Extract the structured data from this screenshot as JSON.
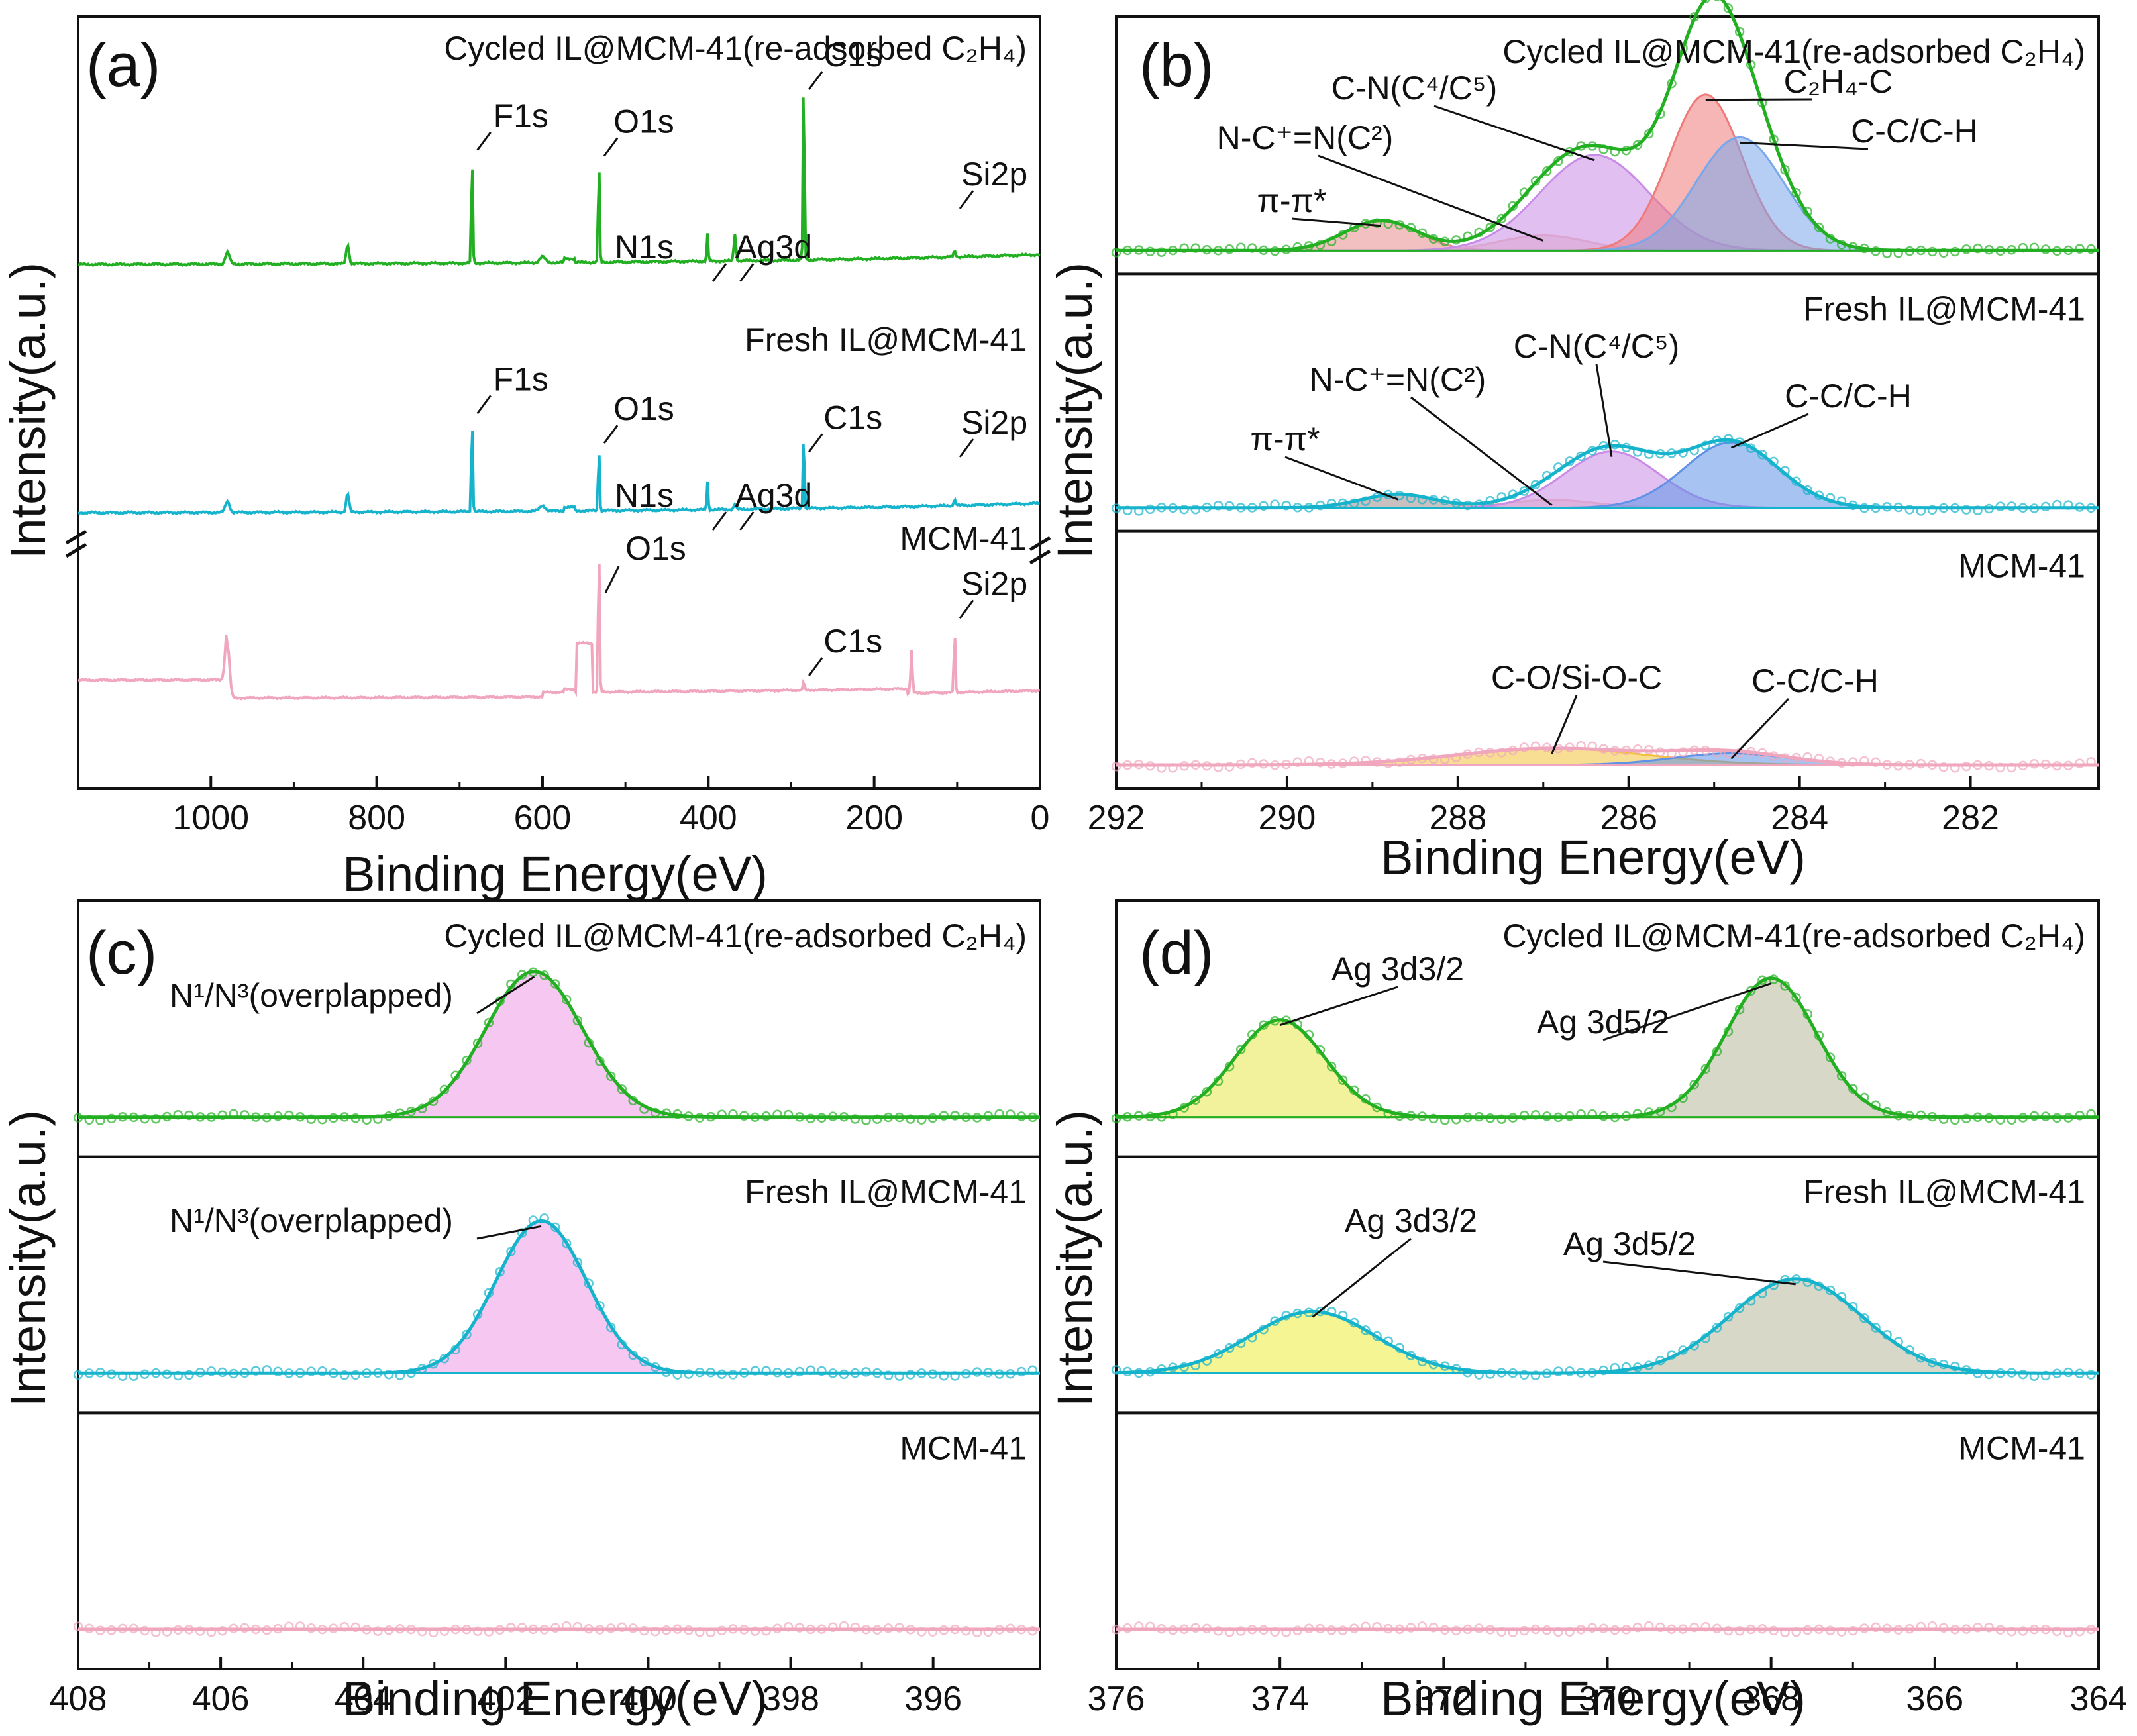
{
  "figure": {
    "panels": [
      {
        "id": "a",
        "letter": "(a)",
        "xlabel": "Binding Energy(eV)",
        "ylabel": "Intensity(a.u.)",
        "xlim": [
          1160,
          0
        ],
        "xticks": [
          1000,
          800,
          600,
          400,
          200,
          0
        ],
        "tracks": [
          {
            "name": "Cycled IL@MCM-41(re-adsorbed C2H4)",
            "sample_label": "Cycled IL@MCM-41(re-adsorbed C₂H₄)",
            "color": "#22b022",
            "peaks": [
              {
                "label": "F1s",
                "x": 685,
                "h": 0.58,
                "w": 2
              },
              {
                "label": "O1s",
                "x": 532,
                "h": 0.55,
                "w": 2
              },
              {
                "label": "N1s",
                "x": 401,
                "h": 0.14,
                "w": 2
              },
              {
                "label": "Ag3d",
                "x": 368,
                "h": 0.14,
                "w": 3
              },
              {
                "label": "C1s",
                "x": 285,
                "h": 1.0,
                "w": 2
              },
              {
                "label": "Si2p",
                "x": 103,
                "h": 0.03,
                "w": 3
              }
            ]
          },
          {
            "name": "Fresh IL@MCM-41",
            "sample_label": "Fresh IL@MCM-41",
            "color": "#16b4cc",
            "peaks": [
              {
                "label": "F1s",
                "x": 685,
                "h": 0.52,
                "w": 2
              },
              {
                "label": "O1s",
                "x": 532,
                "h": 0.36,
                "w": 2
              },
              {
                "label": "N1s",
                "x": 401,
                "h": 0.15,
                "w": 2
              },
              {
                "label": "Ag3d",
                "x": 368,
                "h": 0.03,
                "w": 3
              },
              {
                "label": "C1s",
                "x": 285,
                "h": 0.42,
                "w": 2
              },
              {
                "label": "Si2p",
                "x": 103,
                "h": 0.03,
                "w": 3
              }
            ]
          },
          {
            "name": "MCM-41",
            "sample_label": "MCM-41",
            "color": "#f0a6bd",
            "peaks": [
              {
                "label": "O1s",
                "x": 532,
                "h": 1.0,
                "w": 2
              },
              {
                "label": "C1s",
                "x": 285,
                "h": 0.06,
                "w": 2
              },
              {
                "label": "Si2p",
                "x": 103,
                "h": 0.42,
                "w": 2
              }
            ]
          }
        ]
      },
      {
        "id": "b",
        "letter": "(b)",
        "xlabel": "Binding Energy(eV)",
        "ylabel": "Intensity(a.u.)",
        "xlim": [
          292,
          280.5
        ],
        "xticks": [
          292,
          290,
          288,
          286,
          284,
          282
        ],
        "subpanels": [
          {
            "name": "Cycled IL@MCM-41(re-adsorbed C2H4)",
            "sample_label": "Cycled IL@MCM-41(re-adsorbed C₂H₄)",
            "color": "#22b022",
            "components": [
              {
                "label": "π-π*",
                "center": 288.9,
                "height": 0.12,
                "fwhm": 1.0,
                "color": "#e88c8c"
              },
              {
                "label": "N-C⁺=N(C²)",
                "center": 287.0,
                "height": 0.06,
                "fwhm": 1.2,
                "color": "#f3c2b8"
              },
              {
                "label": "C-N(C⁴/C⁵)",
                "center": 286.4,
                "height": 0.38,
                "fwhm": 1.5,
                "color": "#c98ce6"
              },
              {
                "label": "C₂H₄-C",
                "center": 285.1,
                "height": 0.62,
                "fwhm": 1.0,
                "color": "#f07a7a"
              },
              {
                "label": "C-C/C-H",
                "center": 284.7,
                "height": 0.45,
                "fwhm": 1.2,
                "color": "#7aa6ea"
              }
            ]
          },
          {
            "name": "Fresh IL@MCM-41",
            "sample_label": "Fresh IL@MCM-41",
            "color": "#16b4cc",
            "components": [
              {
                "label": "π-π*",
                "center": 288.7,
                "height": 0.12,
                "fwhm": 1.0,
                "color": "#a08c8c"
              },
              {
                "label": "N-C⁺=N(C²)",
                "center": 286.9,
                "height": 0.07,
                "fwhm": 1.2,
                "color": "#f3c2b8"
              },
              {
                "label": "C-N(C⁴/C⁵)",
                "center": 286.2,
                "height": 0.5,
                "fwhm": 1.3,
                "color": "#c98ce6"
              },
              {
                "label": "C-C/C-H",
                "center": 284.8,
                "height": 0.58,
                "fwhm": 1.3,
                "color": "#5f92e6"
              }
            ]
          },
          {
            "name": "MCM-41",
            "sample_label": "MCM-41",
            "color": "#f0a6bd",
            "components": [
              {
                "label": "C-O/Si-O-C",
                "center": 286.9,
                "height": 0.1,
                "fwhm": 2.6,
                "color": "#f2c23a"
              },
              {
                "label": "C-C/C-H",
                "center": 284.8,
                "height": 0.07,
                "fwhm": 1.6,
                "color": "#5f92e6"
              }
            ]
          }
        ]
      },
      {
        "id": "c",
        "letter": "(c)",
        "xlabel": "Binding Energy(eV)",
        "ylabel": "Intensity(a.u.)",
        "xlim": [
          408,
          394.5
        ],
        "xticks": [
          408,
          406,
          404,
          402,
          400,
          398,
          396
        ],
        "subpanels": [
          {
            "name": "Cycled IL@MCM-41(re-adsorbed C2H4)",
            "sample_label": "Cycled IL@MCM-41(re-adsorbed C₂H₄)",
            "color": "#22b022",
            "components": [
              {
                "label": "N¹/N³(overplapped)",
                "center": 401.6,
                "height": 1.0,
                "fwhm": 1.6,
                "color": "#ee9ae6"
              }
            ]
          },
          {
            "name": "Fresh IL@MCM-41",
            "sample_label": "Fresh IL@MCM-41",
            "color": "#16b4cc",
            "components": [
              {
                "label": "N¹/N³(overplapped)",
                "center": 401.5,
                "height": 1.0,
                "fwhm": 1.5,
                "color": "#ee9ae6"
              }
            ]
          },
          {
            "name": "MCM-41",
            "sample_label": "MCM-41",
            "color": "#f0a6bd",
            "components": []
          }
        ]
      },
      {
        "id": "d",
        "letter": "(d)",
        "xlabel": "Binding Energy(eV)",
        "ylabel": "Intensity(a.u.)",
        "xlim": [
          376,
          364
        ],
        "xticks": [
          376,
          374,
          372,
          370,
          368,
          366,
          364
        ],
        "subpanels": [
          {
            "name": "Cycled IL@MCM-41(re-adsorbed C2H4)",
            "sample_label": "Cycled IL@MCM-41(re-adsorbed C₂H₄)",
            "color": "#22b022",
            "components": [
              {
                "label": "Ag 3d3/2",
                "center": 374.0,
                "height": 0.7,
                "fwhm": 1.3,
                "color": "#e8e84a"
              },
              {
                "label": "Ag 3d5/2",
                "center": 368.0,
                "height": 1.0,
                "fwhm": 1.3,
                "color": "#b8b89a"
              }
            ]
          },
          {
            "name": "Fresh IL@MCM-41",
            "sample_label": "Fresh IL@MCM-41",
            "color": "#16b4cc",
            "components": [
              {
                "label": "Ag 3d3/2",
                "center": 373.6,
                "height": 0.62,
                "fwhm": 1.8,
                "color": "#ecec3a"
              },
              {
                "label": "Ag 3d5/2",
                "center": 367.7,
                "height": 0.95,
                "fwhm": 1.9,
                "color": "#b8b89a"
              }
            ]
          },
          {
            "name": "MCM-41",
            "sample_label": "MCM-41",
            "color": "#f0a6bd",
            "components": []
          }
        ]
      }
    ]
  },
  "chart_data": [
    {
      "type": "line",
      "panel": "a",
      "title": "(a)",
      "xlabel": "Binding Energy(eV)",
      "ylabel": "Intensity(a.u.)",
      "xlim": [
        1160,
        0
      ],
      "series": [
        {
          "name": "Cycled IL@MCM-41(re-adsorbed C2H4)",
          "peaks": {
            "F1s": 685,
            "O1s": 532,
            "N1s": 401,
            "Ag3d": 368,
            "C1s": 285,
            "Si2p": 103
          }
        },
        {
          "name": "Fresh IL@MCM-41",
          "peaks": {
            "F1s": 685,
            "O1s": 532,
            "N1s": 401,
            "Ag3d": 368,
            "C1s": 285,
            "Si2p": 103
          }
        },
        {
          "name": "MCM-41",
          "peaks": {
            "O1s": 532,
            "C1s": 285,
            "Si2p": 103
          }
        }
      ]
    },
    {
      "type": "line",
      "panel": "b",
      "title": "(b)",
      "xlabel": "Binding Energy(eV)",
      "ylabel": "Intensity(a.u.)",
      "xlim": [
        292,
        280.5
      ],
      "series": [
        {
          "name": "Cycled IL@MCM-41(re-adsorbed C2H4)",
          "components": {
            "π-π*": 288.9,
            "N-C+=N(C2)": 287.0,
            "C-N(C4/C5)": 286.4,
            "C2H4-C": 285.1,
            "C-C/C-H": 284.7
          }
        },
        {
          "name": "Fresh IL@MCM-41",
          "components": {
            "π-π*": 288.7,
            "N-C+=N(C2)": 286.9,
            "C-N(C4/C5)": 286.2,
            "C-C/C-H": 284.8
          }
        },
        {
          "name": "MCM-41",
          "components": {
            "C-O/Si-O-C": 286.9,
            "C-C/C-H": 284.8
          }
        }
      ]
    },
    {
      "type": "line",
      "panel": "c",
      "title": "(c)",
      "xlabel": "Binding Energy(eV)",
      "ylabel": "Intensity(a.u.)",
      "xlim": [
        408,
        394.5
      ],
      "series": [
        {
          "name": "Cycled IL@MCM-41(re-adsorbed C2H4)",
          "components": {
            "N1/N3(overplapped)": 401.6
          }
        },
        {
          "name": "Fresh IL@MCM-41",
          "components": {
            "N1/N3(overplapped)": 401.5
          }
        },
        {
          "name": "MCM-41",
          "components": {}
        }
      ]
    },
    {
      "type": "line",
      "panel": "d",
      "title": "(d)",
      "xlabel": "Binding Energy(eV)",
      "ylabel": "Intensity(a.u.)",
      "xlim": [
        376,
        364
      ],
      "series": [
        {
          "name": "Cycled IL@MCM-41(re-adsorbed C2H4)",
          "components": {
            "Ag 3d3/2": 374.0,
            "Ag 3d5/2": 368.0
          }
        },
        {
          "name": "Fresh IL@MCM-41",
          "components": {
            "Ag 3d3/2": 373.6,
            "Ag 3d5/2": 367.7
          }
        },
        {
          "name": "MCM-41",
          "components": {}
        }
      ]
    }
  ]
}
